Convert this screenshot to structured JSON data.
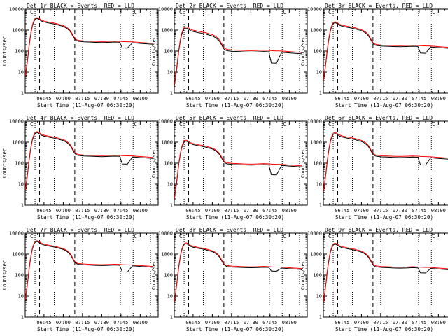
{
  "figure": {
    "background": "#ffffff",
    "colors": {
      "events": "#000000",
      "lld": "#ff0000"
    },
    "panels": [
      {
        "title": "Det 1r BLACK = Events, RED = LLD"
      },
      {
        "title": "Det 2r BLACK = Events, RED = LLD"
      },
      {
        "title": "Det 3r BLACK = Events, RED = LLD"
      },
      {
        "title": "Det 4r BLACK = Events, RED = LLD"
      },
      {
        "title": "Det 5r BLACK = Events, RED = LLD"
      },
      {
        "title": "Det 6r BLACK = Events, RED = LLD"
      },
      {
        "title": "Det 7r BLACK = Events, RED = LLD"
      },
      {
        "title": "Det 8r BLACK = Events, RED = LLD"
      },
      {
        "title": "Det 9r BLACK = Events, RED = LLD"
      }
    ]
  },
  "chart_data": {
    "type": "line",
    "layout": "3x3 grid",
    "xlabel": "Start Time (11-Aug-07 06:30:20)",
    "ylabel": "Counts/sec",
    "x_ticks": [
      "06:45",
      "07:00",
      "07:15",
      "07:30",
      "07:45",
      "08:00"
    ],
    "x_tick_minutes": [
      45,
      60,
      75,
      90,
      105,
      120
    ],
    "xlim_minutes": [
      30.33,
      134
    ],
    "y_scale": "log",
    "ylim": [
      1,
      10000
    ],
    "y_ticks": [
      "1",
      "10",
      "100",
      "1000",
      "10000"
    ],
    "y_tick_values": [
      1,
      10,
      100,
      1000,
      10000
    ],
    "dotted_lines_minutes": [
      38,
      53,
      75,
      104.5,
      114.5,
      128
    ],
    "dashed_lines_minutes": [
      41.5,
      69
    ],
    "legend_text": "",
    "series_shape": {
      "x_minutes": [
        30.33,
        31,
        31.8,
        32.5,
        33.2,
        34,
        35,
        36,
        37,
        38,
        39,
        40,
        41,
        42,
        43,
        44,
        45,
        47,
        49,
        51,
        53,
        55,
        57,
        59,
        61,
        63,
        65,
        66,
        67,
        68,
        69,
        70,
        71,
        72,
        74,
        76,
        80,
        85,
        90,
        95,
        100,
        104,
        106,
        110,
        114,
        116,
        120,
        125,
        130
      ],
      "lld_factor": [
        0.02,
        0.04,
        0.09,
        0.2,
        0.5,
        1.2,
        3,
        6,
        9,
        12,
        13,
        13,
        12,
        11,
        10,
        9.5,
        9,
        8.5,
        8,
        7.6,
        7.2,
        6.8,
        6.2,
        5.8,
        5.2,
        4.4,
        3.4,
        2.8,
        2.2,
        1.7,
        1.35,
        1.2,
        1.12,
        1.08,
        1.05,
        1.02,
        1,
        0.97,
        0.95,
        0.97,
        1,
        0.98,
        0.95,
        0.93,
        0.92,
        0.9,
        0.86,
        0.82,
        0.78
      ]
    },
    "series": [
      {
        "name": "LLD",
        "color": "#ff0000",
        "panel_base": [
          300,
          110,
          190,
          240,
          95,
          220,
          330,
          260,
          250
        ]
      },
      {
        "name": "Events",
        "color": "#000000",
        "panel_base": [
          270,
          95,
          170,
          215,
          85,
          195,
          300,
          235,
          225
        ],
        "dip_interval_minutes": [
          104.5,
          110
        ],
        "dip_factor": [
          0.55,
          0.3,
          0.5,
          0.45,
          0.35,
          0.45,
          0.5,
          0.7,
          0.6
        ]
      }
    ]
  }
}
